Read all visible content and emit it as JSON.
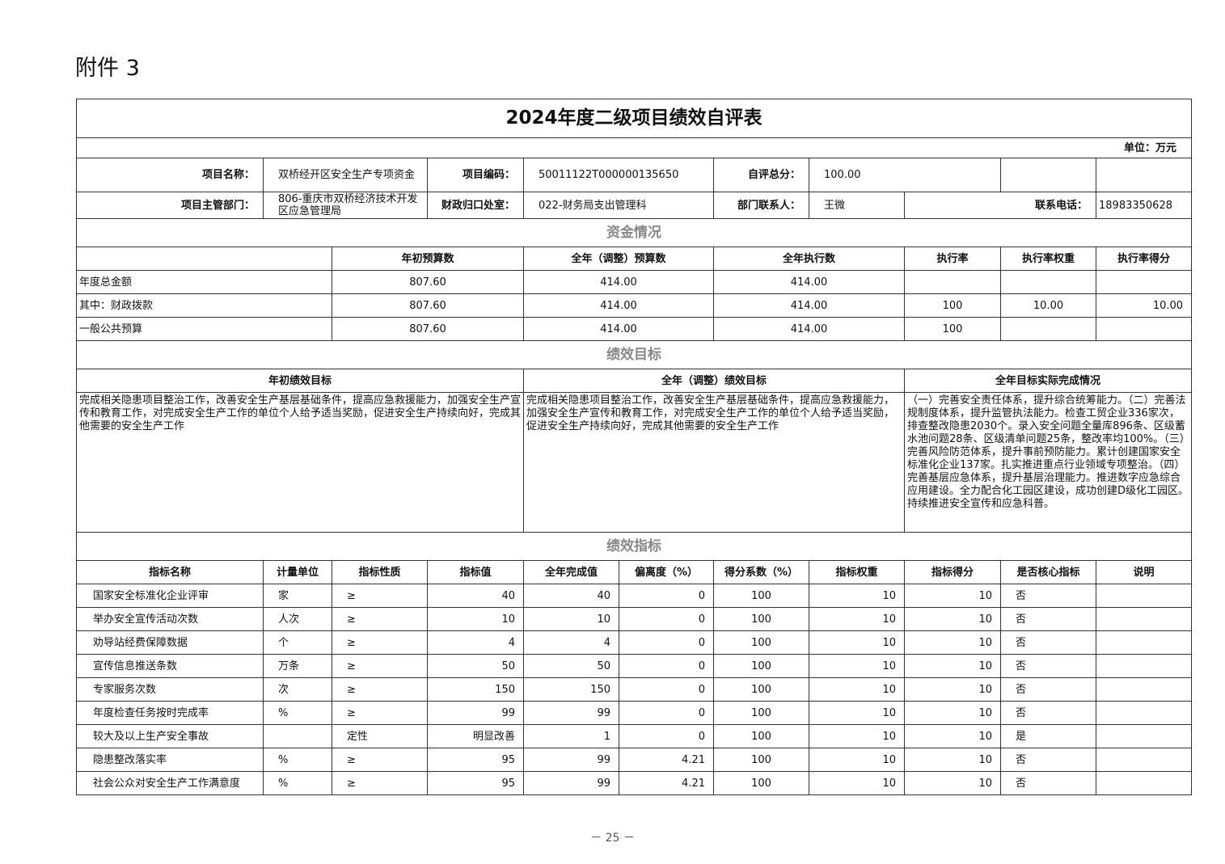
{
  "attachment": "附件 3",
  "title": "2024年度二级项目绩效自评表",
  "unit": "单位：万元",
  "info": {
    "project_name_label": "项目名称：",
    "project_name": "双桥经开区安全生产专项资金",
    "project_code_label": "项目编码：",
    "project_code": "50011122T000000135650",
    "score_label": "自评总分：",
    "score": "100.00",
    "dept_label": "项目主管部门：",
    "dept": "806-重庆市双桥经济技术开发区应急管理局",
    "finance_label": "财政归口处室：",
    "finance": "022-财务局支出管理科",
    "contact_label": "部门联系人：",
    "contact": "王微",
    "phone_label": "联系电话：",
    "phone": "18983350628"
  },
  "funds": {
    "section": "资金情况",
    "headers": [
      "年初预算数",
      "全年（调整）预算数",
      "全年执行数",
      "执行率",
      "执行率权重",
      "执行率得分"
    ],
    "rows": [
      {
        "name": "年度总金额",
        "initial": "807.60",
        "adjusted": "414.00",
        "executed": "414.00",
        "rate": "",
        "weight": "",
        "score": ""
      },
      {
        "name": "其中：财政拨款",
        "initial": "807.60",
        "adjusted": "414.00",
        "executed": "414.00",
        "rate": "100",
        "weight": "10.00",
        "score": "10.00"
      },
      {
        "name": "一般公共预算",
        "initial": "807.60",
        "adjusted": "414.00",
        "executed": "414.00",
        "rate": "100",
        "weight": "",
        "score": ""
      }
    ]
  },
  "goals": {
    "section": "绩效目标",
    "headers": [
      "年初绩效目标",
      "全年（调整）绩效目标",
      "全年目标实际完成情况"
    ],
    "initial": "完成相关隐患项目整治工作，改善安全生产基层基础条件，提高应急救援能力，加强安全生产宣传和教育工作，对完成安全生产工作的单位个人给予适当奖励，促进安全生产持续向好，完成其他需要的安全生产工作",
    "adjusted": "完成相关隐患项目整治工作，改善安全生产基层基础条件，提高应急救援能力，加强安全生产宣传和教育工作，对完成安全生产工作的单位个人给予适当奖励，促进安全生产持续向好，完成其他需要的安全生产工作",
    "actual": "（一）完善安全责任体系，提升综合统筹能力。（二）完善法规制度体系，提升监管执法能力。检查工贸企业336家次，排查整改隐患2030个。录入安全问题全量库896条、区级蓄水池问题28条、区级清单问题25条，整改率均100%。（三）完善风险防范体系，提升事前预防能力。累计创建国家安全标准化企业137家。扎实推进重点行业领域专项整治。（四）完善基层应急体系，提升基层治理能力。推进数字应急综合应用建设。全力配合化工园区建设，成功创建D级化工园区。持续推进安全宣传和应急科普。"
  },
  "indicators": {
    "section": "绩效指标",
    "headers": [
      "指标名称",
      "计量单位",
      "指标性质",
      "指标值",
      "全年完成值",
      "偏离度（%）",
      "得分系数（%）",
      "指标权重",
      "指标得分",
      "是否核心指标",
      "说明"
    ],
    "rows": [
      [
        "国家安全标准化企业评审",
        "家",
        "≥",
        "40",
        "40",
        "0",
        "100",
        "10",
        "10",
        "否",
        ""
      ],
      [
        "举办安全宣传活动次数",
        "人次",
        "≥",
        "10",
        "10",
        "0",
        "100",
        "10",
        "10",
        "否",
        ""
      ],
      [
        "劝导站经费保障数据",
        "个",
        "≥",
        "4",
        "4",
        "0",
        "100",
        "10",
        "10",
        "否",
        ""
      ],
      [
        "宣传信息推送条数",
        "万条",
        "≥",
        "50",
        "50",
        "0",
        "100",
        "10",
        "10",
        "否",
        ""
      ],
      [
        "专家服务次数",
        "次",
        "≥",
        "150",
        "150",
        "0",
        "100",
        "10",
        "10",
        "否",
        ""
      ],
      [
        "年度检查任务按时完成率",
        "%",
        "≥",
        "99",
        "99",
        "0",
        "100",
        "10",
        "10",
        "否",
        ""
      ],
      [
        "较大及以上生产安全事故",
        "",
        "定性",
        "明显改善",
        "1",
        "0",
        "100",
        "10",
        "10",
        "是",
        ""
      ],
      [
        "隐患整改落实率",
        "%",
        "≥",
        "95",
        "99",
        "4.21",
        "100",
        "10",
        "10",
        "否",
        ""
      ],
      [
        "社会公众对安全生产工作满意度",
        "%",
        "≥",
        "95",
        "99",
        "4.21",
        "100",
        "10",
        "10",
        "否",
        ""
      ]
    ]
  },
  "page": "－ 25 －"
}
